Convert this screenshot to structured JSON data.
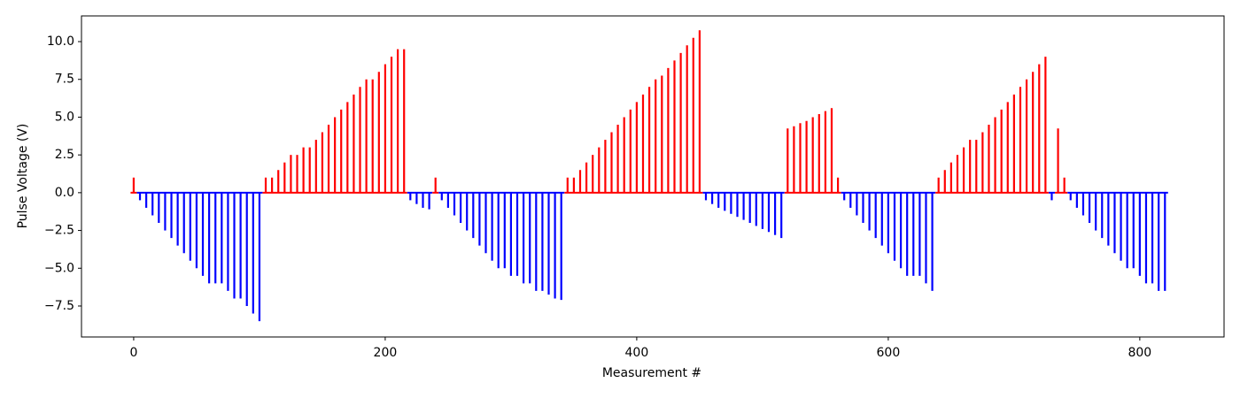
{
  "chart_data": {
    "type": "stem",
    "x_label": "Measurement #",
    "y_label": "Pulse Voltage (V)",
    "xlim": [
      -41.5,
      867
    ],
    "ylim": [
      -9.55,
      11.7
    ],
    "xticks": [
      0,
      200,
      400,
      600,
      800
    ],
    "yticks": [
      {
        "value": -7.5,
        "label": "−7.5"
      },
      {
        "value": -5,
        "label": "−5.0"
      },
      {
        "value": -2.5,
        "label": "−2.5"
      },
      {
        "value": 0,
        "label": "0.0"
      },
      2.5,
      {
        "value": 5,
        "label": "5.0"
      },
      7.5,
      {
        "value": 10,
        "label": "10.0"
      }
    ],
    "series": [
      {
        "color": "#ff0000",
        "x": [
          0,
          105,
          110,
          115,
          120,
          125,
          130,
          135,
          140,
          145,
          150,
          155,
          160,
          165,
          170,
          175,
          180,
          185,
          190,
          195,
          200,
          205,
          210,
          215,
          240,
          345,
          350,
          355,
          360,
          365,
          370,
          375,
          380,
          385,
          390,
          395,
          400,
          405,
          410,
          415,
          420,
          425,
          430,
          435,
          440,
          445,
          450,
          520,
          525,
          530,
          535,
          540,
          545,
          550,
          555,
          560,
          640,
          645,
          650,
          655,
          660,
          665,
          670,
          675,
          680,
          685,
          690,
          695,
          700,
          705,
          710,
          715,
          720,
          725,
          735,
          740
        ],
        "values": [
          1,
          1,
          1,
          1.5,
          2,
          2.5,
          2.5,
          3,
          3,
          3.5,
          4,
          4.5,
          5,
          5.5,
          6,
          6.5,
          7,
          7.5,
          7.5,
          8,
          8.5,
          9,
          9.5,
          9.5,
          1,
          1,
          1,
          1.5,
          2,
          2.5,
          3,
          3.5,
          4,
          4.5,
          5,
          5.5,
          6,
          6.5,
          7,
          7.5,
          7.75,
          8.25,
          8.75,
          9.25,
          9.75,
          10.25,
          10.75,
          4.25,
          4.4,
          4.6,
          4.75,
          5,
          5.2,
          5.4,
          5.6,
          1,
          1,
          1.5,
          2,
          2.5,
          3,
          3.5,
          3.5,
          4,
          4.5,
          5,
          5.5,
          6,
          6.5,
          7,
          7.5,
          8,
          8.5,
          9,
          4.25,
          1
        ]
      },
      {
        "color": "#0000ff",
        "x": [
          5,
          10,
          15,
          20,
          25,
          30,
          35,
          40,
          45,
          50,
          55,
          60,
          65,
          70,
          75,
          80,
          85,
          90,
          95,
          100,
          220,
          225,
          230,
          235,
          245,
          250,
          255,
          260,
          265,
          270,
          275,
          280,
          285,
          290,
          295,
          300,
          305,
          310,
          315,
          320,
          325,
          330,
          335,
          340,
          455,
          460,
          465,
          470,
          475,
          480,
          485,
          490,
          495,
          500,
          505,
          510,
          515,
          565,
          570,
          575,
          580,
          585,
          590,
          595,
          600,
          605,
          610,
          615,
          620,
          625,
          630,
          635,
          730,
          745,
          750,
          755,
          760,
          765,
          770,
          775,
          780,
          785,
          790,
          795,
          800,
          805,
          810,
          815,
          820
        ],
        "values": [
          -0.5,
          -1,
          -1.5,
          -2,
          -2.5,
          -3,
          -3.5,
          -4,
          -4.5,
          -5,
          -5.5,
          -6,
          -6,
          -6,
          -6.5,
          -7,
          -7,
          -7.5,
          -8,
          -8.5,
          -0.5,
          -0.75,
          -1,
          -1.1,
          -0.5,
          -1,
          -1.5,
          -2,
          -2.5,
          -3,
          -3.5,
          -4,
          -4.5,
          -5,
          -5,
          -5.5,
          -5.5,
          -6,
          -6,
          -6.5,
          -6.5,
          -6.75,
          -7,
          -7.1,
          -0.5,
          -0.75,
          -1,
          -1.2,
          -1.4,
          -1.6,
          -1.8,
          -2,
          -2.2,
          -2.4,
          -2.6,
          -2.8,
          -3,
          -0.5,
          -1,
          -1.5,
          -2,
          -2.5,
          -3,
          -3.5,
          -4,
          -4.5,
          -5,
          -5.5,
          -5.5,
          -5.5,
          -6,
          -6.5,
          -0.5,
          -0.5,
          -1,
          -1.5,
          -2,
          -2.5,
          -3,
          -3.5,
          -4,
          -4.5,
          -5,
          -5,
          -5.5,
          -6,
          -6,
          -6.5,
          -6.5
        ]
      }
    ]
  }
}
